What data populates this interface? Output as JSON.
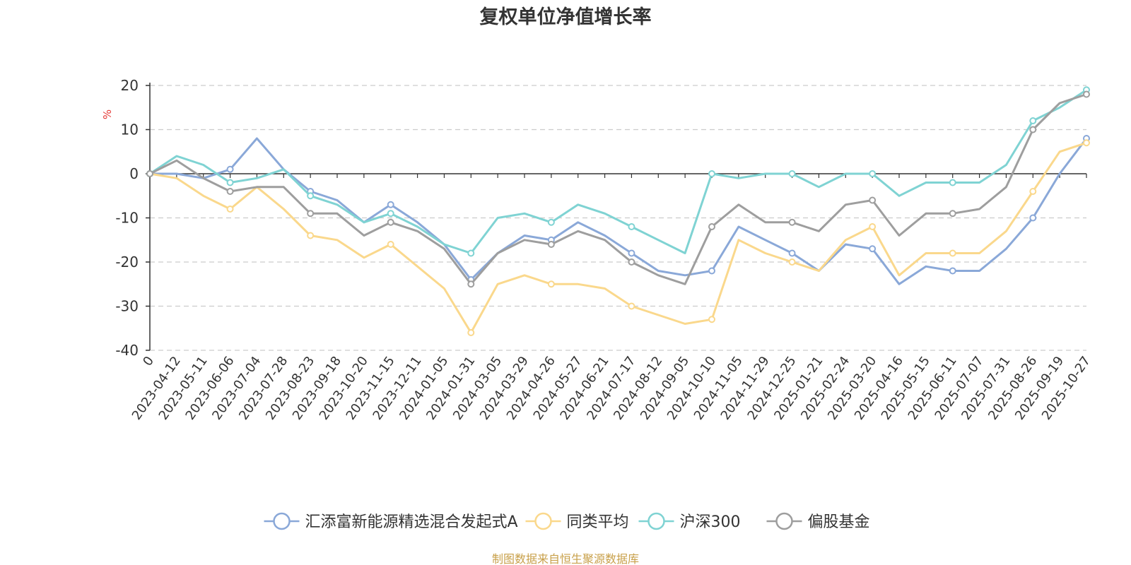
{
  "chart_data": {
    "type": "line",
    "title": "复权单位净值增长率",
    "ylabel": "%",
    "xlabel": "",
    "ylim": [
      -40,
      20
    ],
    "yticks": [
      20,
      10,
      0,
      -10,
      -20,
      -30,
      -40
    ],
    "grid": true,
    "legend_position": "bottom",
    "categories": [
      "0",
      "2023-04-12",
      "2023-05-11",
      "2023-06-06",
      "2023-07-04",
      "2023-07-28",
      "2023-08-23",
      "2023-09-18",
      "2023-10-20",
      "2023-11-15",
      "2023-12-11",
      "2024-01-05",
      "2024-01-31",
      "2024-03-05",
      "2024-03-29",
      "2024-04-26",
      "2024-05-27",
      "2024-06-21",
      "2024-07-17",
      "2024-08-12",
      "2024-09-05",
      "2024-10-10",
      "2024-11-05",
      "2024-11-29",
      "2024-12-25",
      "2025-01-21",
      "2025-02-24",
      "2025-03-20",
      "2025-04-16",
      "2025-05-15",
      "2025-06-11",
      "2025-07-07",
      "2025-07-31",
      "2025-08-26",
      "2025-09-19",
      "2025-10-27"
    ],
    "series": [
      {
        "name": "汇添富新能源精选混合发起式A",
        "color": "#8aa8d8",
        "values": [
          0,
          0,
          -1,
          1,
          8,
          1,
          -4,
          -6,
          -11,
          -7,
          -11,
          -16,
          -24,
          -18,
          -14,
          -15,
          -11,
          -14,
          -18,
          -22,
          -23,
          -22,
          -12,
          -15,
          -18,
          -22,
          -16,
          -17,
          -25,
          -21,
          -22,
          -22,
          -17,
          -10,
          0,
          8
        ]
      },
      {
        "name": "同类平均",
        "color": "#fad88c",
        "values": [
          0,
          -1,
          -5,
          -8,
          -3,
          -8,
          -14,
          -15,
          -19,
          -16,
          -21,
          -26,
          -36,
          -25,
          -23,
          -25,
          -25,
          -26,
          -30,
          -32,
          -34,
          -33,
          -15,
          -18,
          -20,
          -22,
          -15,
          -12,
          -23,
          -18,
          -18,
          -18,
          -13,
          -4,
          5,
          7
        ]
      },
      {
        "name": "沪深300",
        "color": "#7fd3d3",
        "values": [
          0,
          4,
          2,
          -2,
          -1,
          1,
          -5,
          -7,
          -11,
          -9,
          -12,
          -16,
          -18,
          -10,
          -9,
          -11,
          -7,
          -9,
          -12,
          -15,
          -18,
          0,
          -1,
          0,
          0,
          -3,
          0,
          0,
          -5,
          -2,
          -2,
          -2,
          2,
          12,
          15,
          19
        ]
      },
      {
        "name": "偏股基金",
        "color": "#9e9e9e",
        "values": [
          0,
          3,
          -1,
          -4,
          -3,
          -3,
          -9,
          -9,
          -14,
          -11,
          -13,
          -17,
          -25,
          -18,
          -15,
          -16,
          -13,
          -15,
          -20,
          -23,
          -25,
          -12,
          -7,
          -11,
          -11,
          -13,
          -7,
          -6,
          -14,
          -9,
          -9,
          -8,
          -3,
          10,
          16,
          18
        ]
      }
    ]
  },
  "legend": {
    "items": [
      {
        "label": "汇添富新能源精选混合发起式A",
        "color": "#8aa8d8"
      },
      {
        "label": "同类平均",
        "color": "#fad88c"
      },
      {
        "label": "沪深300",
        "color": "#7fd3d3"
      },
      {
        "label": "偏股基金",
        "color": "#9e9e9e"
      }
    ]
  },
  "source_text": "制图数据来自恒生聚源数据库"
}
